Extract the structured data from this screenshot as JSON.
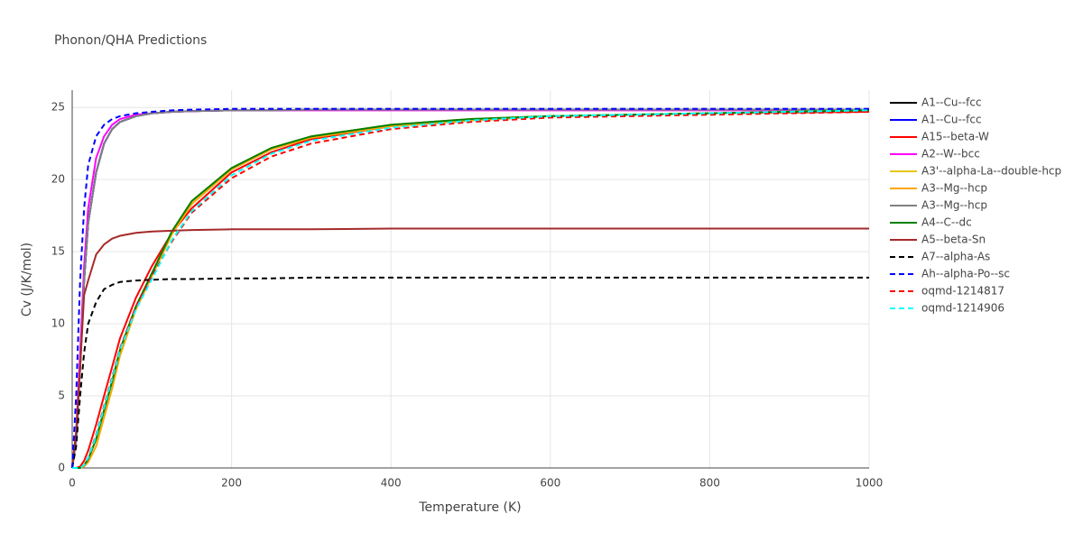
{
  "chart_data": {
    "type": "line",
    "title": "Phonon/QHA Predictions",
    "x_label": "Temperature (K)",
    "y_label": "Cv (J/K/mol)",
    "xlim": [
      0,
      1000
    ],
    "ylim": [
      0,
      26.2
    ],
    "xticks": [
      0,
      200,
      400,
      600,
      800,
      1000
    ],
    "yticks": [
      0,
      5,
      10,
      15,
      20,
      25
    ],
    "grid": true,
    "legend": "right",
    "x": [
      0,
      5,
      10,
      15,
      20,
      30,
      40,
      50,
      60,
      80,
      100,
      125,
      150,
      200,
      250,
      300,
      400,
      500,
      600,
      800,
      1000
    ],
    "series": [
      {
        "name": "A1--Cu--fcc",
        "color": "#000000",
        "dash": false,
        "values": [
          0,
          2,
          7,
          13,
          17,
          20.5,
          22.5,
          23.5,
          24,
          24.4,
          24.6,
          24.7,
          24.75,
          24.8,
          24.8,
          24.85,
          24.85,
          24.85,
          24.85,
          24.85,
          24.85
        ]
      },
      {
        "name": "A1--Cu--fcc",
        "color": "#0000ff",
        "dash": false,
        "values": [
          0,
          2,
          7,
          13,
          17,
          20.5,
          22.5,
          23.5,
          24,
          24.4,
          24.6,
          24.7,
          24.75,
          24.8,
          24.8,
          24.85,
          24.85,
          24.85,
          24.85,
          24.85,
          24.85
        ]
      },
      {
        "name": "A15--beta-W",
        "color": "#ff0000",
        "dash": false,
        "values": [
          0,
          0,
          0.1,
          0.5,
          1.2,
          3,
          5,
          7,
          9,
          11.8,
          14,
          16.3,
          18,
          20.5,
          21.9,
          22.8,
          23.7,
          24.1,
          24.4,
          24.6,
          24.7
        ]
      },
      {
        "name": "A2--W--bcc",
        "color": "#ff00ff",
        "dash": false,
        "values": [
          0,
          2.5,
          8,
          14,
          18,
          21.5,
          23,
          23.8,
          24.2,
          24.5,
          24.6,
          24.7,
          24.75,
          24.8,
          24.8,
          24.8,
          24.8,
          24.8,
          24.8,
          24.8,
          24.8
        ]
      },
      {
        "name": "A3'--alpha-La--double-hcp",
        "color": "#e6c619",
        "dash": false,
        "values": [
          0,
          0,
          0,
          0.2,
          0.6,
          2,
          4,
          6,
          8.2,
          11.2,
          13.5,
          16.4,
          18.5,
          20.8,
          22.2,
          23,
          23.8,
          24.2,
          24.4,
          24.6,
          24.8
        ]
      },
      {
        "name": "A3--Mg--hcp",
        "color": "#ffa500",
        "dash": false,
        "values": [
          0,
          0,
          0,
          0.1,
          0.4,
          1.5,
          3.5,
          5.5,
          7.8,
          11,
          13.3,
          16.2,
          18.3,
          20.7,
          22.1,
          22.9,
          23.7,
          24.1,
          24.4,
          24.6,
          24.8
        ]
      },
      {
        "name": "A3--Mg--hcp",
        "color": "#808080",
        "dash": false,
        "values": [
          0,
          2,
          7,
          13,
          17,
          20.5,
          22.5,
          23.5,
          24,
          24.4,
          24.6,
          24.7,
          24.75,
          24.8,
          24.8,
          24.85,
          24.85,
          24.85,
          24.85,
          24.85,
          24.85
        ]
      },
      {
        "name": "A4--C--dc",
        "color": "#008000",
        "dash": false,
        "values": [
          0,
          0,
          0,
          0.2,
          0.6,
          2,
          4,
          6,
          8.2,
          11.2,
          13.5,
          16.4,
          18.5,
          20.8,
          22.2,
          23,
          23.8,
          24.2,
          24.4,
          24.6,
          24.8
        ]
      },
      {
        "name": "A5--beta-Sn",
        "color": "#a52a2a",
        "dash": false,
        "values": [
          0,
          2.5,
          7,
          12,
          13,
          14.8,
          15.5,
          15.9,
          16.1,
          16.3,
          16.4,
          16.45,
          16.5,
          16.55,
          16.55,
          16.55,
          16.6,
          16.6,
          16.6,
          16.6,
          16.6
        ]
      },
      {
        "name": "A7--alpha-As",
        "color": "#000000",
        "dash": true,
        "values": [
          0,
          1.5,
          5,
          8,
          10,
          11.5,
          12.4,
          12.7,
          12.9,
          13,
          13.05,
          13.1,
          13.1,
          13.15,
          13.15,
          13.2,
          13.2,
          13.2,
          13.2,
          13.2,
          13.2
        ]
      },
      {
        "name": "Ah--alpha-Po--sc",
        "color": "#0000ff",
        "dash": true,
        "values": [
          0,
          5,
          13,
          18,
          21,
          23,
          23.8,
          24.2,
          24.4,
          24.6,
          24.7,
          24.8,
          24.85,
          24.9,
          24.9,
          24.9,
          24.9,
          24.9,
          24.9,
          24.9,
          24.9
        ]
      },
      {
        "name": "oqmd-1214817",
        "color": "#ff0000",
        "dash": true,
        "values": [
          0,
          0,
          0,
          0.2,
          0.7,
          2.3,
          4.3,
          6.3,
          8.3,
          11.2,
          13.3,
          15.7,
          17.7,
          20.1,
          21.6,
          22.5,
          23.5,
          24,
          24.3,
          24.5,
          24.7
        ]
      },
      {
        "name": "oqmd-1214906",
        "color": "#00ffff",
        "dash": true,
        "values": [
          0,
          0,
          0,
          0.2,
          0.7,
          2.2,
          4.2,
          6.2,
          8.2,
          11,
          13.1,
          15.8,
          17.8,
          20.3,
          21.8,
          22.7,
          23.6,
          24.1,
          24.4,
          24.6,
          24.8
        ]
      }
    ]
  }
}
